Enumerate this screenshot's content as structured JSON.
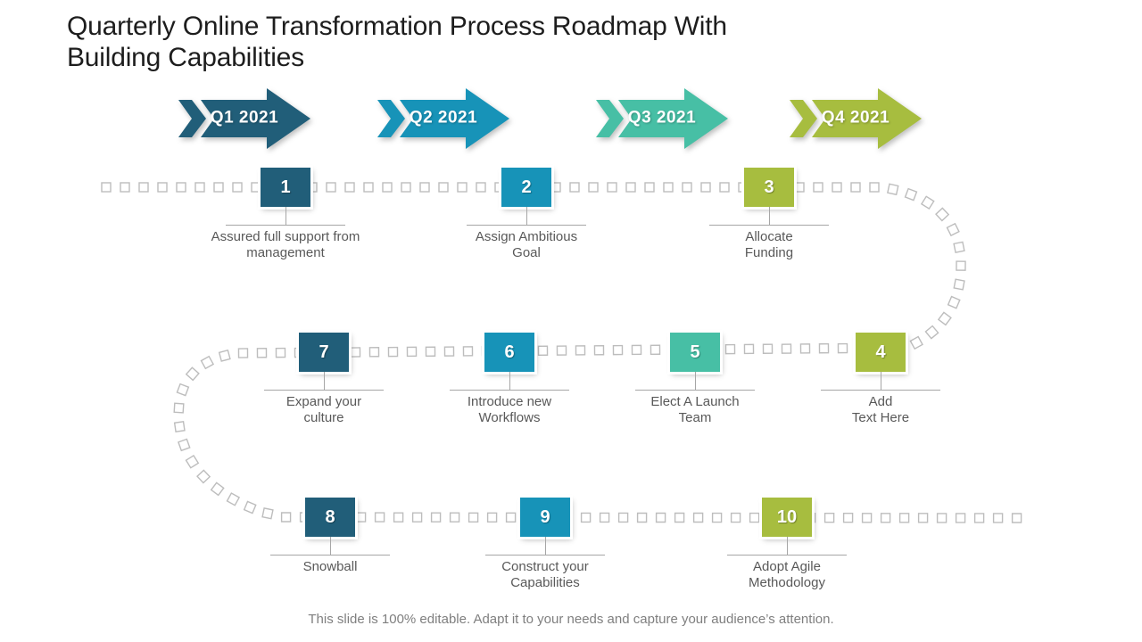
{
  "slide": {
    "title": [
      "Quarterly Online Transformation Process Roadmap With",
      "Building Capabilities"
    ],
    "footer": "This slide is 100% editable. Adapt it to your needs and capture your audience’s attention."
  },
  "quarters": [
    {
      "label": "Q1 2021",
      "color": "#215E79"
    },
    {
      "label": "Q2 2021",
      "color": "#1793B8"
    },
    {
      "label": "Q3 2021",
      "color": "#47BFA5"
    },
    {
      "label": "Q4 2021",
      "color": "#A7BD3F"
    }
  ],
  "milestones": [
    {
      "number": "1",
      "color": "#215E79",
      "caption": [
        "Assured full support from",
        "management"
      ]
    },
    {
      "number": "2",
      "color": "#1793B8",
      "caption": [
        "Assign Ambitious",
        "Goal"
      ]
    },
    {
      "number": "3",
      "color": "#A7BD3F",
      "caption": [
        "Allocate",
        "Funding"
      ]
    },
    {
      "number": "4",
      "color": "#A7BD3F",
      "caption": [
        "Add",
        "Text Here"
      ]
    },
    {
      "number": "5",
      "color": "#47BFA5",
      "caption": [
        "Elect A Launch",
        "Team"
      ]
    },
    {
      "number": "6",
      "color": "#1793B8",
      "caption": [
        "Introduce new",
        "Workflows"
      ]
    },
    {
      "number": "7",
      "color": "#215E79",
      "caption": [
        "Expand your",
        "culture"
      ]
    },
    {
      "number": "8",
      "color": "#215E79",
      "caption": [
        "Snowball"
      ]
    },
    {
      "number": "9",
      "color": "#1793B8",
      "caption": [
        "Construct your",
        "Capabilities"
      ]
    },
    {
      "number": "10",
      "color": "#A7BD3F",
      "caption": [
        "Adopt Agile",
        "Methodology"
      ]
    }
  ],
  "route": {
    "square_color": "#BDBDBD"
  }
}
